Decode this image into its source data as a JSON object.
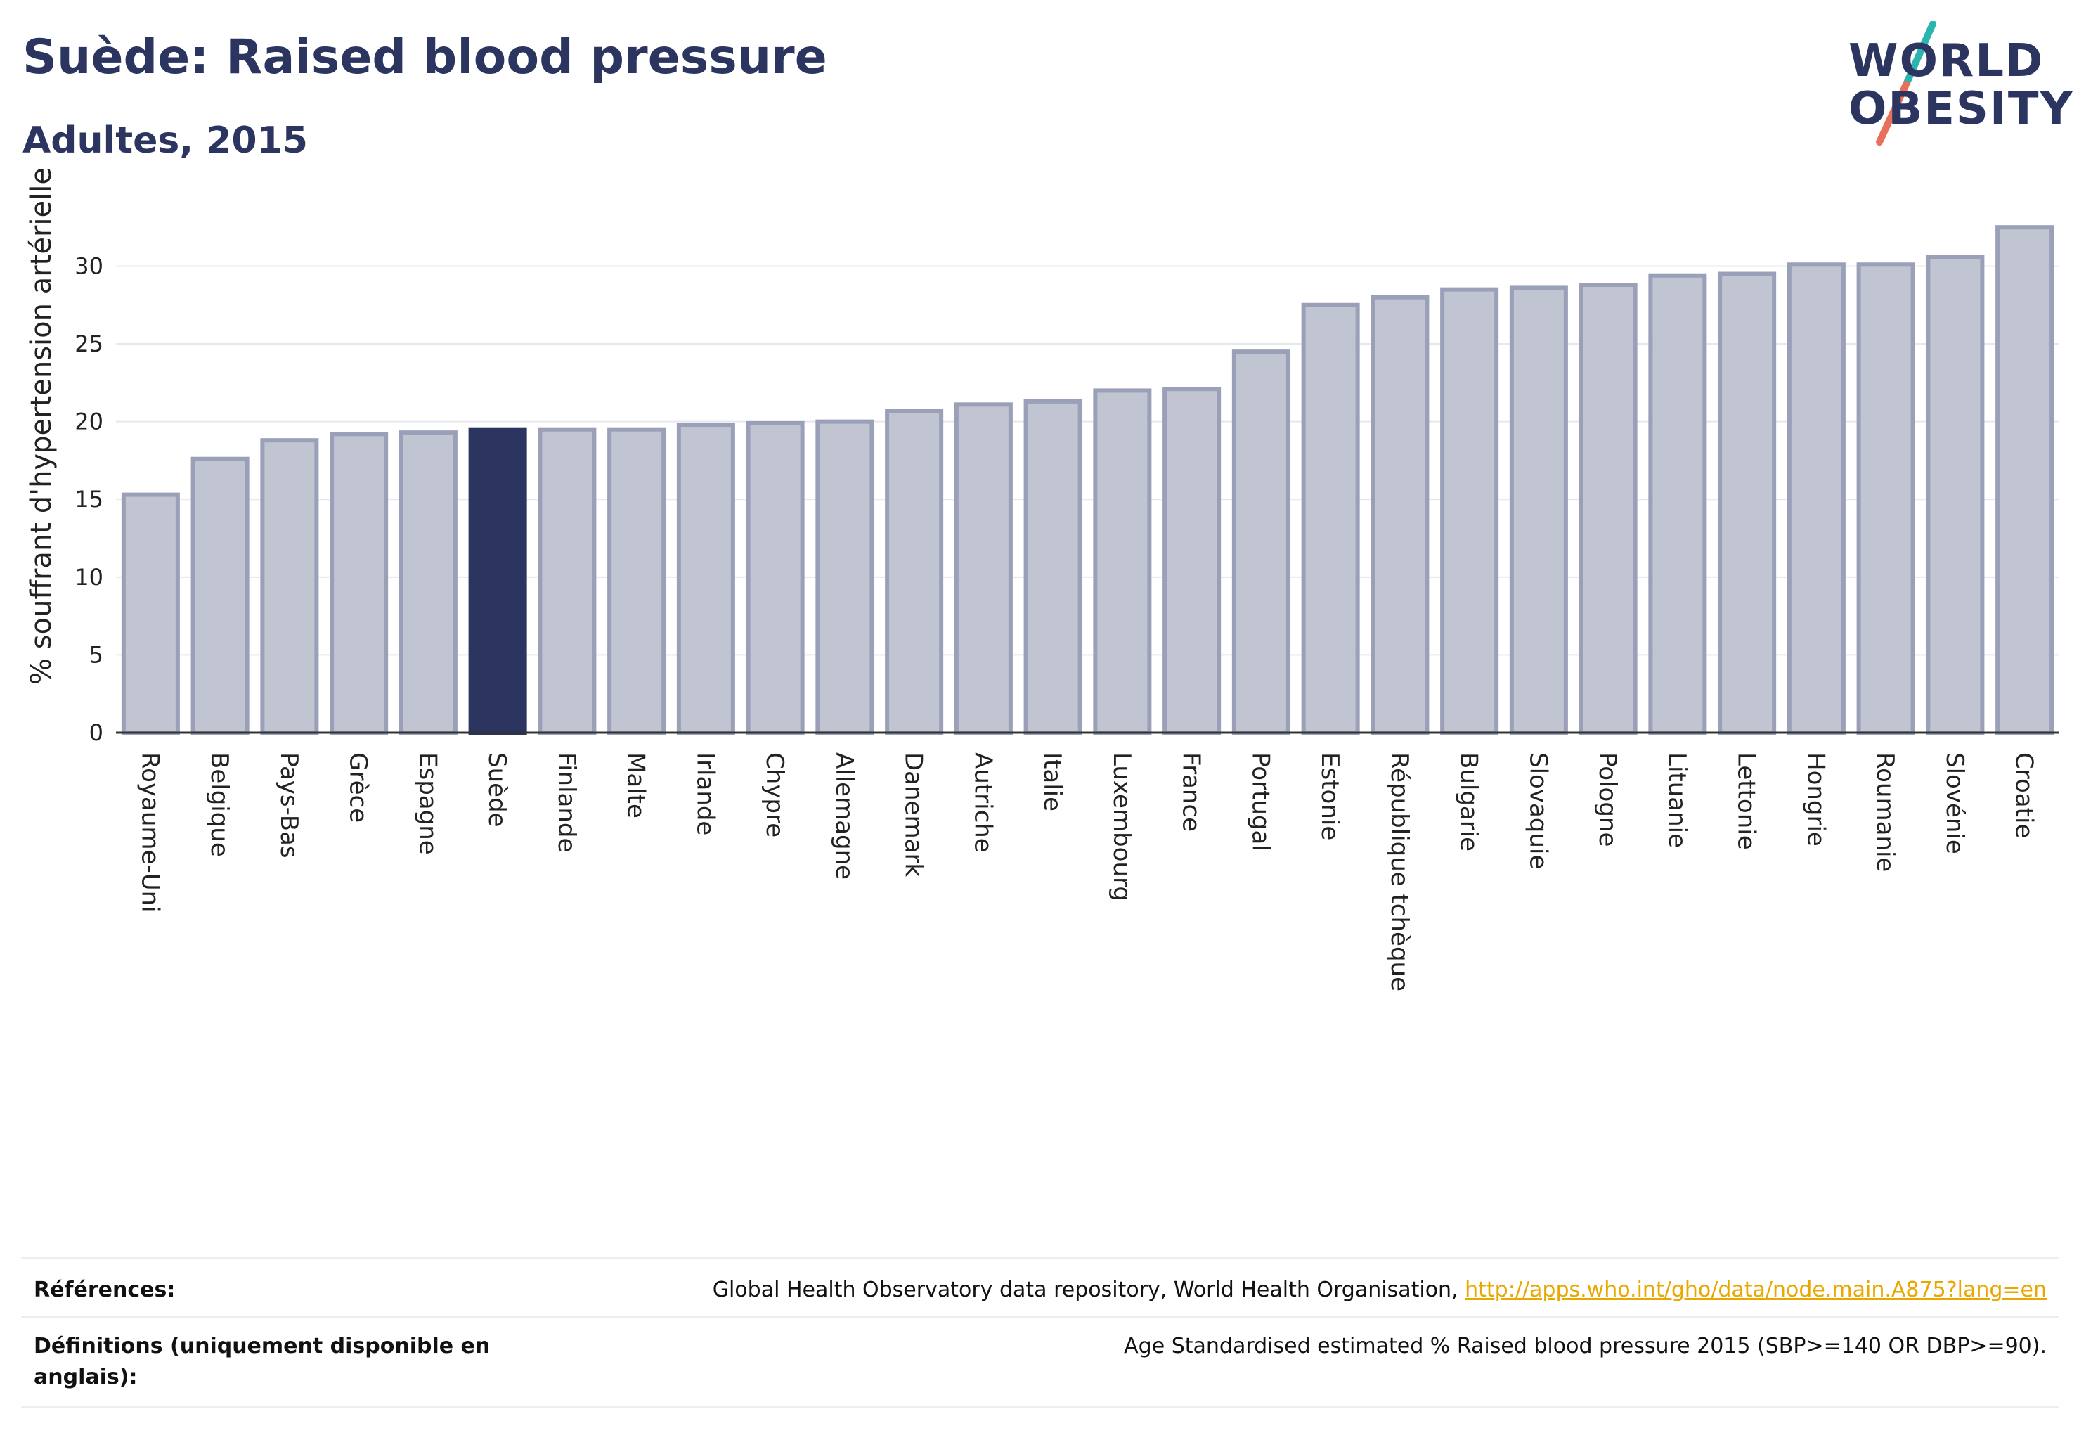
{
  "header": {
    "title": "Suède: Raised blood pressure",
    "subtitle": "Adultes, 2015"
  },
  "logo": {
    "line1": "WORLD",
    "line2": "OBESITY",
    "colors": {
      "text": "#2b3560",
      "slash_top": "#2bb5b0",
      "slash_bottom": "#e8705a"
    }
  },
  "chart_data": {
    "type": "bar",
    "title": "",
    "xlabel": "",
    "ylabel": "% souffrant d'hypertension artérielle",
    "ylim": [
      0,
      34
    ],
    "yticks": [
      0,
      5,
      10,
      15,
      20,
      25,
      30
    ],
    "grid": true,
    "highlight": "Suède",
    "colors": {
      "bar": "#c1c4d1",
      "bar_edge": "#9aa0b8",
      "highlight": "#2b3560"
    },
    "categories": [
      "Royaume-Uni",
      "Belgique",
      "Pays-Bas",
      "Grèce",
      "Espagne",
      "Suède",
      "Finlande",
      "Malte",
      "Irlande",
      "Chypre",
      "Allemagne",
      "Danemark",
      "Autriche",
      "Italie",
      "Luxembourg",
      "France",
      "Portugal",
      "Estonie",
      "République tchèque",
      "Bulgarie",
      "Slovaquie",
      "Pologne",
      "Lituanie",
      "Lettonie",
      "Hongrie",
      "Roumanie",
      "Slovénie",
      "Croatie"
    ],
    "values": [
      15.3,
      17.6,
      18.8,
      19.2,
      19.3,
      19.5,
      19.5,
      19.5,
      19.8,
      19.9,
      20.0,
      20.7,
      21.1,
      21.3,
      22.0,
      22.1,
      24.5,
      27.5,
      28.0,
      28.5,
      28.6,
      28.8,
      29.4,
      29.5,
      30.1,
      30.1,
      30.6,
      32.5
    ]
  },
  "footer": {
    "references_label": "Références:",
    "references_text": "Global Health Observatory data repository, World Health Organisation, ",
    "references_link": "http://apps.who.int/gho/data/node.main.A875?lang=en",
    "definitions_label": "Définitions (uniquement disponible en anglais):",
    "definitions_text": "Age Standardised estimated % Raised blood pressure 2015 (SBP>=140 OR DBP>=90)."
  }
}
